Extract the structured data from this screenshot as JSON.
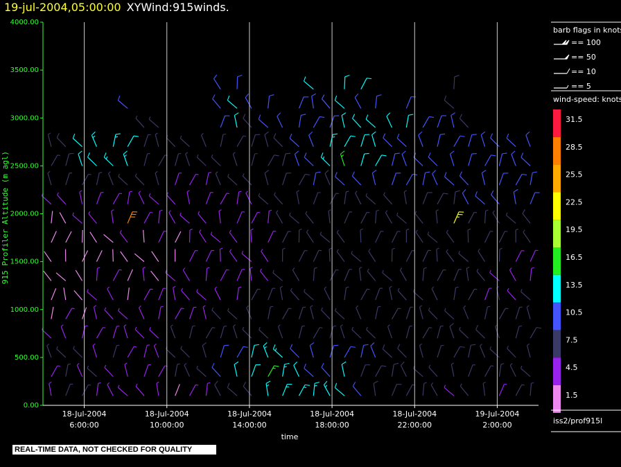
{
  "title": {
    "timestamp": "19-jul-2004,05:00:00",
    "name": "XYWind:915winds."
  },
  "quality_notice": "REAL-TIME DATA, NOT CHECKED FOR QUALITY",
  "colors": {
    "background": "#000000",
    "axis": "#33ff33",
    "text": "#ffffff",
    "title_timestamp": "#ffff33"
  },
  "chart_data": {
    "type": "wind-barb",
    "ylabel": "915 Profiler Altitude (m agl)",
    "xlabel": "time",
    "ylim": [
      0,
      4000
    ],
    "yticks": [
      "0.00",
      "500.00",
      "1000.00",
      "1500.00",
      "2000.00",
      "2500.00",
      "3000.00",
      "3500.00",
      "4000.00"
    ],
    "xlim_hours": [
      4.0,
      28.0
    ],
    "xticks": [
      {
        "hour": 6,
        "date": "18-Jul-2004",
        "time": "6:00:00"
      },
      {
        "hour": 10,
        "date": "18-Jul-2004",
        "time": "10:00:00"
      },
      {
        "hour": 14,
        "date": "18-Jul-2004",
        "time": "14:00:00"
      },
      {
        "hour": 18,
        "date": "18-Jul-2004",
        "time": "18:00:00"
      },
      {
        "hour": 22,
        "date": "18-Jul-2004",
        "time": "22:00:00"
      },
      {
        "hour": 26,
        "date": "19-Jul-2004",
        "time": "2:00:00"
      }
    ],
    "grid": "vertical-at-ticks",
    "barb_legend": {
      "title": "barb flags in knots",
      "items": [
        {
          "label": "== 100",
          "type": "100"
        },
        {
          "label": "== 50",
          "type": "50"
        },
        {
          "label": "== 10",
          "type": "10"
        },
        {
          "label": "== 5",
          "type": "5"
        }
      ]
    },
    "speed_legend": {
      "title": "wind-speed: knots",
      "levels": [
        {
          "label": "31.5",
          "color": "#ff1a40"
        },
        {
          "label": "28.5",
          "color": "#ff8000"
        },
        {
          "label": "25.5",
          "color": "#ffaa00"
        },
        {
          "label": "22.5",
          "color": "#ffff00"
        },
        {
          "label": "19.5",
          "color": "#aaff33"
        },
        {
          "label": "16.5",
          "color": "#22ee22"
        },
        {
          "label": "13.5",
          "color": "#00ffff"
        },
        {
          "label": "10.5",
          "color": "#4455ff"
        },
        {
          "label": "7.5",
          "color": "#3a3a66"
        },
        {
          "label": "4.5",
          "color": "#9922ee"
        },
        {
          "label": "1.5",
          "color": "#ee88ee"
        }
      ]
    },
    "source": "iss2/prof915l",
    "wind_field": {
      "time_hours": [
        4.4,
        5.1,
        5.9,
        6.6,
        7.4,
        8.1,
        8.9,
        9.6,
        10.4,
        11.1,
        11.9,
        12.6,
        13.4,
        14.1,
        14.9,
        15.6,
        16.4,
        17.1,
        17.9,
        18.6,
        19.4,
        20.1,
        20.9,
        21.6,
        22.4,
        23.1,
        23.9,
        24.6,
        25.4,
        26.1,
        26.9,
        27.6
      ],
      "heights_m": [
        100,
        300,
        500,
        700,
        900,
        1100,
        1300,
        1500,
        1700,
        1900,
        2100,
        2300,
        2500,
        2700,
        2900,
        3100,
        3300
      ],
      "speed_knots": [
        [
          4,
          6,
          6,
          5,
          3,
          3,
          3,
          3,
          2,
          5,
          5,
          8,
          8,
          8,
          13,
          13,
          14,
          14,
          13,
          12,
          9,
          8,
          8,
          7,
          6,
          6,
          5,
          6,
          6,
          5,
          6,
          7
        ],
        [
          5,
          6,
          5,
          6,
          5,
          4,
          5,
          4,
          6,
          7,
          7,
          9,
          12,
          12,
          17,
          14,
          12,
          11,
          11,
          12,
          8,
          8,
          8,
          8,
          6,
          6,
          6,
          6,
          7,
          7,
          7,
          7
        ],
        [
          6,
          7,
          6,
          5,
          6,
          5,
          5,
          5,
          6,
          6,
          8,
          9,
          11,
          12,
          13,
          13,
          11,
          11,
          10,
          10,
          9,
          9,
          8,
          8,
          7,
          7,
          8,
          8,
          7,
          6,
          7,
          7
        ],
        [
          3,
          4,
          4,
          4,
          5,
          5,
          5,
          5,
          6,
          6,
          6,
          7,
          7,
          7,
          7,
          7,
          7,
          7,
          7,
          7,
          7,
          7,
          7,
          7,
          7,
          7,
          8,
          7,
          8,
          7,
          7,
          8
        ],
        [
          2,
          3,
          2,
          4,
          5,
          4,
          4,
          5,
          5,
          5,
          5,
          6,
          6,
          6,
          6,
          7,
          6,
          7,
          7,
          7,
          7,
          7,
          7,
          7,
          7,
          6,
          6,
          6,
          7,
          6,
          7,
          6
        ],
        [
          2,
          2,
          2,
          3,
          4,
          2,
          4,
          4,
          3,
          4,
          5,
          5,
          5,
          6,
          6,
          6,
          6,
          7,
          7,
          7,
          7,
          7,
          7,
          7,
          6,
          6,
          7,
          6,
          5,
          6,
          5,
          6
        ],
        [
          2,
          2,
          2,
          3,
          3,
          2,
          3,
          2,
          3,
          3,
          3,
          5,
          5,
          5,
          5,
          6,
          6,
          6,
          6,
          6,
          6,
          7,
          7,
          7,
          6,
          6,
          6,
          6,
          6,
          5,
          5,
          5
        ],
        [
          2,
          2,
          2,
          2,
          2,
          2,
          2,
          2,
          2,
          3,
          3,
          4,
          4,
          5,
          5,
          6,
          6,
          6,
          6,
          6,
          6,
          6,
          7,
          7,
          7,
          7,
          6,
          6,
          6,
          6,
          5,
          5
        ],
        [
          2,
          2,
          2,
          2,
          2,
          3,
          2,
          3,
          2,
          3,
          4,
          4,
          4,
          5,
          5,
          6,
          6,
          6,
          6,
          6,
          6,
          7,
          7,
          7,
          7,
          7,
          7,
          6,
          6,
          6,
          6,
          7
        ],
        [
          2,
          2,
          4,
          4,
          4,
          29,
          3,
          3,
          3,
          3,
          4,
          4,
          4,
          5,
          5,
          6,
          6,
          6,
          6,
          6,
          6,
          7,
          7,
          7,
          7,
          7,
          23,
          6,
          6,
          7,
          7,
          8
        ],
        [
          3,
          3,
          4,
          4,
          4,
          4,
          4,
          4,
          4,
          4,
          4,
          5,
          5,
          5,
          6,
          6,
          6,
          6,
          7,
          7,
          7,
          7,
          7,
          7,
          8,
          8,
          8,
          9,
          9,
          9,
          9,
          9
        ],
        [
          6,
          6,
          6,
          6,
          6,
          7,
          6,
          6,
          5,
          5,
          5,
          6,
          6,
          7,
          8,
          8,
          8,
          9,
          8,
          9,
          9,
          9,
          9,
          10,
          10,
          10,
          10,
          10,
          10,
          10,
          9,
          10
        ],
        [
          6,
          8,
          12,
          12,
          13,
          14,
          6,
          6,
          6,
          6,
          6,
          6,
          7,
          7,
          8,
          8,
          9,
          10,
          14,
          15,
          12,
          12,
          11,
          11,
          11,
          11,
          11,
          11,
          10,
          10,
          10,
          10
        ],
        [
          7,
          8,
          12,
          13,
          13,
          12,
          7,
          6,
          6,
          7,
          6,
          6,
          7,
          8,
          8,
          8,
          9,
          9,
          14,
          12,
          12,
          12,
          11,
          11,
          11,
          11,
          11,
          11,
          11,
          10,
          10,
          10
        ],
        [
          0,
          0,
          0,
          0,
          0,
          0,
          6,
          6,
          0,
          0,
          0,
          11,
          12,
          8,
          9,
          10,
          9,
          11,
          11,
          12,
          12,
          12,
          12,
          12,
          11,
          10,
          9,
          8,
          0,
          0,
          0,
          0
        ],
        [
          0,
          0,
          0,
          0,
          0,
          10,
          0,
          0,
          0,
          0,
          0,
          11,
          12,
          11,
          10,
          0,
          11,
          11,
          11,
          12,
          11,
          11,
          0,
          9,
          0,
          0,
          8,
          0,
          0,
          0,
          0,
          0
        ],
        [
          0,
          0,
          0,
          0,
          0,
          0,
          0,
          0,
          0,
          0,
          0,
          11,
          11,
          0,
          0,
          0,
          0,
          12,
          0,
          12,
          12,
          0,
          0,
          0,
          0,
          0,
          8,
          0,
          0,
          0,
          0,
          0
        ]
      ]
    }
  }
}
